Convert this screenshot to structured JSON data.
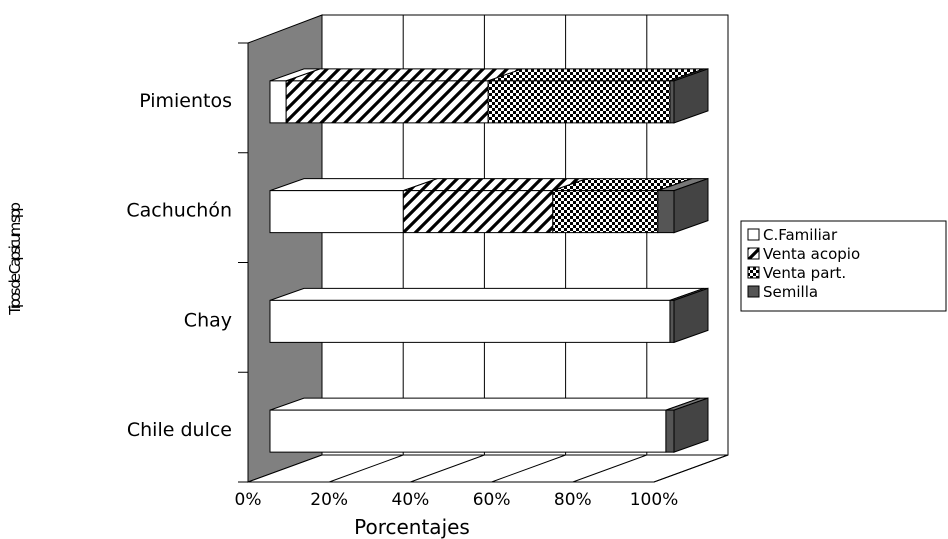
{
  "chart_data": {
    "type": "bar",
    "orientation": "horizontal",
    "stacked": "percent",
    "three_d": true,
    "categories": [
      "Chile dulce",
      "Chay",
      "Cachuchón",
      "Pimientos"
    ],
    "series": [
      {
        "name": "C.Familiar",
        "values": [
          98,
          99,
          33,
          4
        ],
        "color": "#ffffff",
        "pattern": "none"
      },
      {
        "name": "Venta acopio",
        "values": [
          0,
          0,
          37,
          50
        ],
        "color": "#ffffff",
        "pattern": "diagonal-hatch"
      },
      {
        "name": "Venta part.",
        "values": [
          0,
          0,
          26,
          45
        ],
        "color": "#ffffff",
        "pattern": "checker"
      },
      {
        "name": "Semilla",
        "values": [
          2,
          1,
          4,
          1
        ],
        "color": "#555555",
        "pattern": "solid"
      }
    ],
    "x_ticks": [
      "0%",
      "20%",
      "40%",
      "60%",
      "80%",
      "100%"
    ],
    "xlim": [
      0,
      100
    ],
    "xlabel": "Porcentajes",
    "ylabel": "Tipos de Capsicum spp",
    "grid": true,
    "legend_position": "right",
    "wall_color": "#808080"
  }
}
